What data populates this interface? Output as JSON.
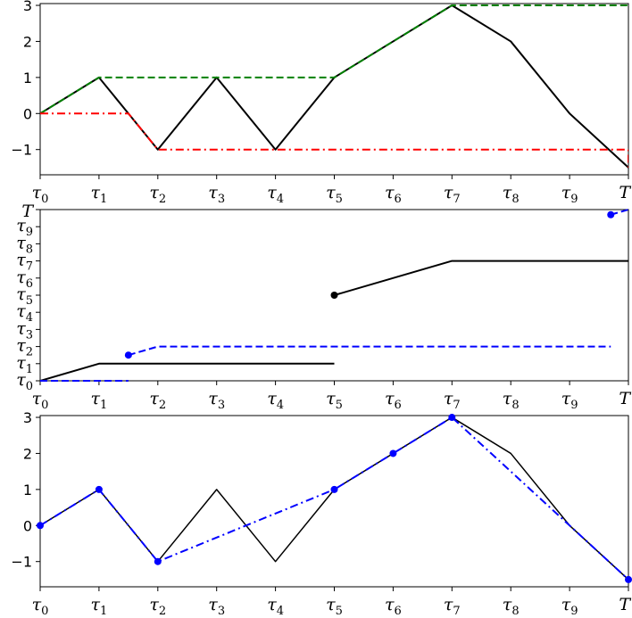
{
  "chart_data": [
    {
      "type": "line",
      "x_ticks": [
        "τ0",
        "τ1",
        "τ2",
        "τ3",
        "τ4",
        "τ5",
        "τ6",
        "τ7",
        "τ8",
        "τ9",
        "T"
      ],
      "xlim": [
        0,
        10
      ],
      "y_ticks": [
        "−1",
        "0",
        "1",
        "2",
        "3"
      ],
      "ylim": [
        -1.7,
        3.05
      ],
      "grid": false,
      "series": [
        {
          "style": "solid",
          "color": "#000000",
          "x": [
            0,
            1,
            2,
            3,
            4,
            5,
            6,
            7,
            8,
            9,
            10
          ],
          "y": [
            0,
            1,
            -1,
            1,
            -1,
            1,
            2,
            3,
            2,
            0,
            -1.5
          ]
        },
        {
          "style": "dashed",
          "color": "#008000",
          "x": [
            0,
            1,
            5,
            7,
            10
          ],
          "y": [
            0,
            1,
            1,
            3,
            3
          ]
        },
        {
          "style": "dashdot",
          "color": "#ff0000",
          "x": [
            0,
            1.5,
            2,
            10,
            10
          ],
          "y": [
            0,
            0,
            -1,
            -1,
            -1.5
          ]
        }
      ]
    },
    {
      "type": "line",
      "x_ticks": [
        "τ0",
        "τ1",
        "τ2",
        "τ3",
        "τ4",
        "τ5",
        "τ6",
        "τ7",
        "τ8",
        "τ9",
        "T"
      ],
      "y_ticks": [
        "τ0",
        "τ1",
        "τ2",
        "τ3",
        "τ4",
        "τ5",
        "τ6",
        "τ7",
        "τ8",
        "τ9",
        "T"
      ],
      "xlim": [
        0,
        10
      ],
      "ylim": [
        0,
        10
      ],
      "grid": false,
      "series": [
        {
          "style": "solid",
          "color": "#000000",
          "segments": [
            {
              "x": [
                0,
                1,
                5
              ],
              "y": [
                0,
                1,
                1
              ]
            },
            {
              "x": [
                5,
                7,
                10
              ],
              "y": [
                5,
                7,
                7
              ],
              "start_marker": true
            }
          ]
        },
        {
          "style": "dashed",
          "color": "#0000ff",
          "segments": [
            {
              "x": [
                0,
                1.5
              ],
              "y": [
                0,
                0
              ]
            },
            {
              "x": [
                1.5,
                2,
                9.7
              ],
              "y": [
                1.5,
                2,
                2
              ],
              "start_marker": true
            },
            {
              "x": [
                9.7,
                10
              ],
              "y": [
                9.7,
                10
              ],
              "start_marker": true
            }
          ]
        }
      ]
    },
    {
      "type": "line",
      "x_ticks": [
        "τ0",
        "τ1",
        "τ2",
        "τ3",
        "τ4",
        "τ5",
        "τ6",
        "τ7",
        "τ8",
        "τ9",
        "T"
      ],
      "xlim": [
        0,
        10
      ],
      "y_ticks": [
        "−1",
        "0",
        "1",
        "2",
        "3"
      ],
      "ylim": [
        -1.7,
        3.05
      ],
      "grid": false,
      "series": [
        {
          "style": "solid",
          "color": "#000000",
          "x": [
            0,
            1,
            2,
            3,
            4,
            5,
            6,
            7,
            8,
            9,
            10
          ],
          "y": [
            0,
            1,
            -1,
            1,
            -1,
            1,
            2,
            3,
            2,
            0,
            -1.5
          ]
        },
        {
          "style": "dashdot",
          "color": "#0000ff",
          "x": [
            0,
            1,
            2,
            5,
            6,
            7,
            10
          ],
          "y": [
            0,
            1,
            -1,
            1,
            2,
            3,
            -1.5
          ],
          "markers": true
        }
      ]
    }
  ]
}
